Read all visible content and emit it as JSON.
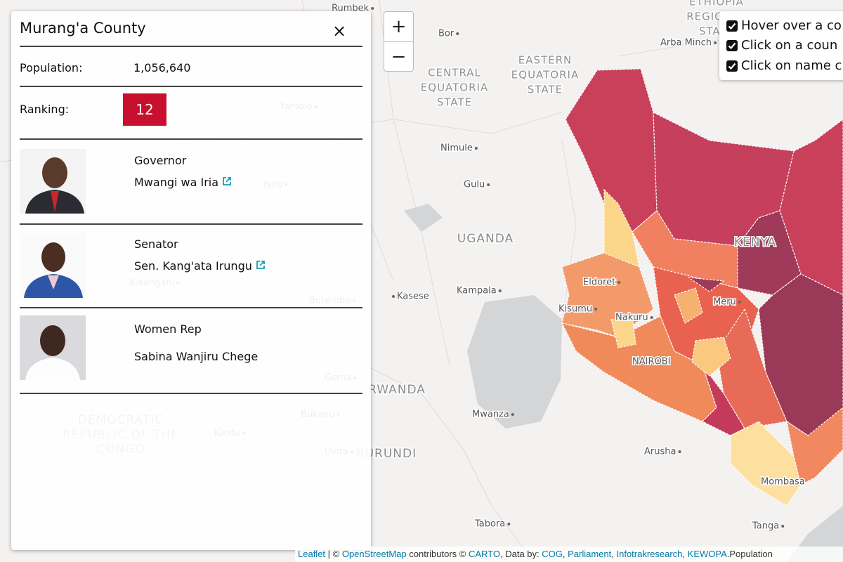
{
  "panel": {
    "title": "Murang'a County",
    "close": "×",
    "population_label": "Population:",
    "population": "1,056,640",
    "ranking_label": "Ranking:",
    "ranking": 12,
    "officials": [
      {
        "role": "Governor",
        "name": "Mwangi wa Iria"
      },
      {
        "role": "Senator",
        "name": "Sen. Kang'ata Irungu"
      },
      {
        "role": "Women Rep",
        "name": "Sabina Wanjiru Chege"
      }
    ]
  },
  "zoom": {
    "in": "+",
    "out": "−"
  },
  "options": [
    "Hover over a co",
    "Click on a coun",
    "Click on name c"
  ],
  "map_labels": [
    {
      "text": "Rumbek",
      "kind": "city"
    },
    {
      "text": "Bor",
      "kind": "city"
    },
    {
      "text": "Arba Minch",
      "kind": "city"
    },
    {
      "lines": [
        "ETHIOPIA",
        "REGIONAL",
        "STATE"
      ],
      "kind": "region"
    },
    {
      "lines": [
        "CENTRAL",
        "EQUATORIA",
        "STATE"
      ],
      "kind": "region"
    },
    {
      "lines": [
        "EASTERN",
        "EQUATORIA",
        "STATE"
      ],
      "kind": "region"
    },
    {
      "text": "Nimule",
      "kind": "city"
    },
    {
      "text": "Gulu",
      "kind": "city"
    },
    {
      "lines": [
        "UGANDA"
      ],
      "kind": "country"
    },
    {
      "text": "Kampala",
      "kind": "city"
    },
    {
      "text": "Kasese",
      "kind": "city"
    },
    {
      "lines": [
        "KENYA"
      ],
      "kind": "country"
    },
    {
      "text": "Eldoret",
      "kind": "city"
    },
    {
      "text": "Kisumu",
      "kind": "city"
    },
    {
      "text": "Nakuru",
      "kind": "city"
    },
    {
      "text": "Meru",
      "kind": "city"
    },
    {
      "text": "NAIROBI",
      "kind": "city"
    },
    {
      "lines": [
        "RWANDA"
      ],
      "kind": "country"
    },
    {
      "text": "Mwanza",
      "kind": "city"
    },
    {
      "lines": [
        "BURUNDI"
      ],
      "kind": "country"
    },
    {
      "text": "Arusha",
      "kind": "city"
    },
    {
      "text": "Mombasa",
      "kind": "city"
    },
    {
      "text": "Tabora",
      "kind": "city"
    },
    {
      "text": "Tanga",
      "kind": "city"
    },
    {
      "text": "Yambio",
      "kind": "city"
    },
    {
      "text": "Isiro",
      "kind": "city"
    },
    {
      "text": "Kisangani",
      "kind": "city"
    },
    {
      "text": "Butembo",
      "kind": "city"
    },
    {
      "text": "Goma",
      "kind": "city"
    },
    {
      "text": "Bukavu",
      "kind": "city"
    },
    {
      "text": "Kindu",
      "kind": "city"
    },
    {
      "text": "Uvira",
      "kind": "city"
    },
    {
      "lines": [
        "DEMOCRATIC",
        "REPUBLIC OF THE",
        "CONGO"
      ],
      "kind": "country"
    }
  ],
  "attribution": [
    {
      "text": "Leaflet",
      "link": true
    },
    {
      "text": " | © ",
      "link": false
    },
    {
      "text": "OpenStreetMap",
      "link": true
    },
    {
      "text": " contributors © ",
      "link": false
    },
    {
      "text": "CARTO",
      "link": true
    },
    {
      "text": ", Data by: ",
      "link": false
    },
    {
      "text": "COG",
      "link": true
    },
    {
      "text": ", ",
      "link": false
    },
    {
      "text": "Parliament",
      "link": true
    },
    {
      "text": ", ",
      "link": false
    },
    {
      "text": "Infotrakresearch",
      "link": true
    },
    {
      "text": ", ",
      "link": false
    },
    {
      "text": "KEWOPA",
      "link": true
    },
    {
      "text": ".Population",
      "link": false
    }
  ]
}
